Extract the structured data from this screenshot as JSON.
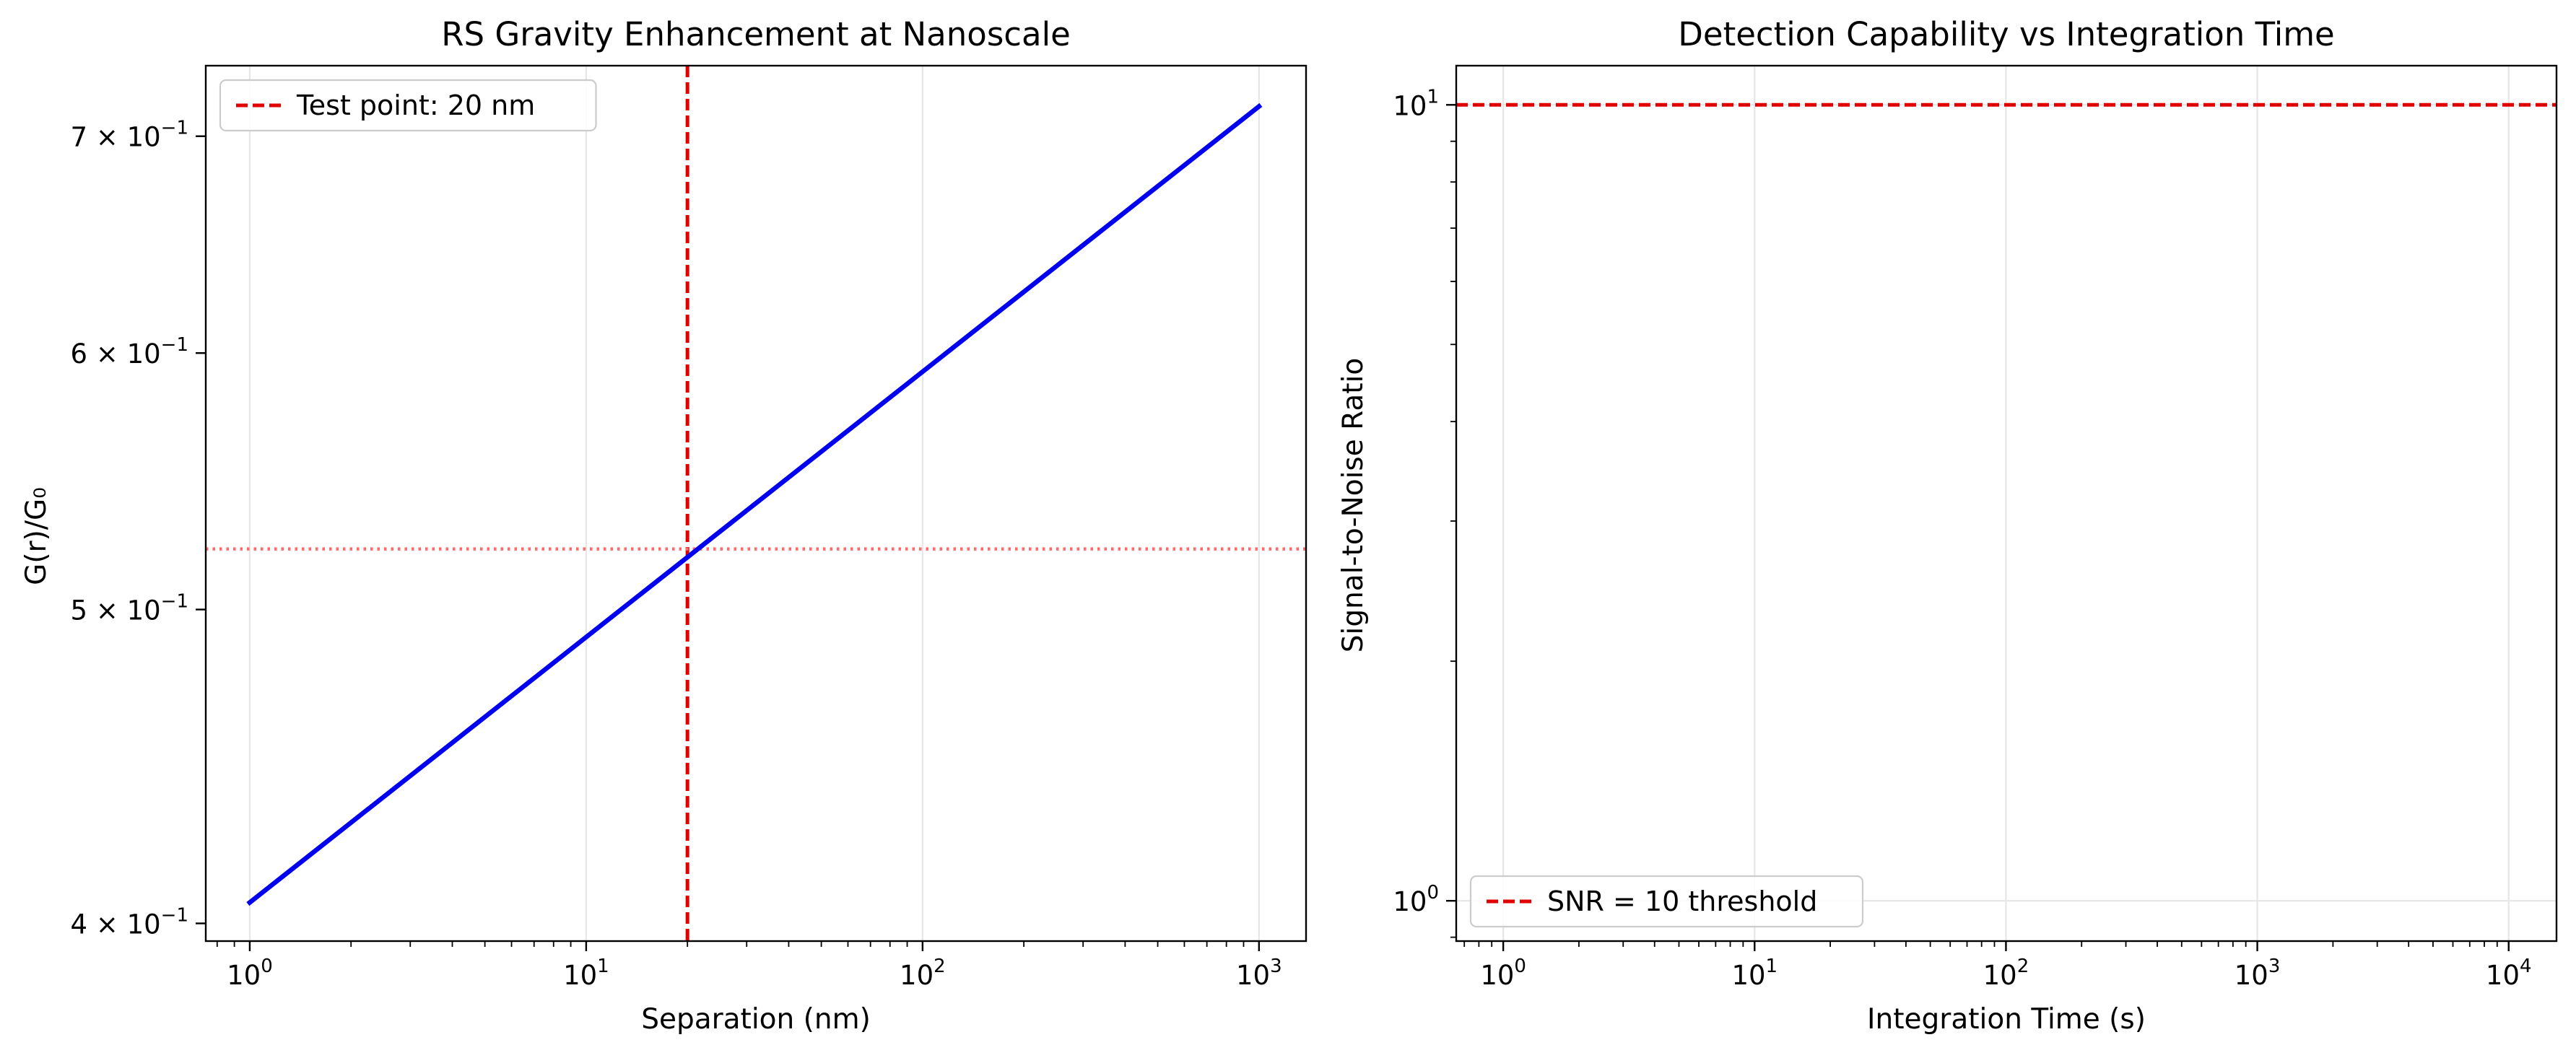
{
  "chart_data": [
    {
      "type": "line",
      "title": "RS Gravity Enhancement at Nanoscale",
      "xlabel": "Separation (nm)",
      "ylabel": "G(r)/G₀",
      "xscale": "log",
      "yscale": "log",
      "xlim": [
        0.74,
        1380
      ],
      "ylim": [
        0.395,
        0.736
      ],
      "grid": "x",
      "legend_position": "upper left",
      "x_ticks": [
        {
          "value": 1,
          "label": "10",
          "exp": "0"
        },
        {
          "value": 10,
          "label": "10",
          "exp": "1"
        },
        {
          "value": 100,
          "label": "10",
          "exp": "2"
        },
        {
          "value": 1000,
          "label": "10",
          "exp": "3"
        }
      ],
      "y_ticks": [
        {
          "value": 0.4,
          "label": "4 × 10",
          "exp": "−1"
        },
        {
          "value": 0.5,
          "label": "5 × 10",
          "exp": "−1"
        },
        {
          "value": 0.6,
          "label": "6 × 10",
          "exp": "−1"
        },
        {
          "value": 0.7,
          "label": "7 × 10",
          "exp": "−1"
        }
      ],
      "series": [
        {
          "color": "#0000ee",
          "style": "solid",
          "x": [
            1,
            1000
          ],
          "y": [
            0.406,
            0.715
          ]
        }
      ],
      "reference_lines": [
        {
          "orientation": "vertical",
          "x": 20,
          "color": "#e00000",
          "style": "dashed",
          "legend": "Test point: 20 nm"
        },
        {
          "orientation": "horizontal",
          "y": 0.522,
          "color": "#ff6b6b",
          "style": "dotted"
        }
      ]
    },
    {
      "type": "line",
      "title": "Detection Capability vs Integration Time",
      "xlabel": "Integration Time (s)",
      "ylabel": "Signal-to-Noise Ratio",
      "xscale": "log",
      "yscale": "log",
      "xlim": [
        0.65,
        15500
      ],
      "ylim": [
        0.89,
        11.2
      ],
      "grid": "both",
      "legend_position": "lower left",
      "x_ticks": [
        {
          "value": 1,
          "label": "10",
          "exp": "0"
        },
        {
          "value": 10,
          "label": "10",
          "exp": "1"
        },
        {
          "value": 100,
          "label": "10",
          "exp": "2"
        },
        {
          "value": 1000,
          "label": "10",
          "exp": "3"
        },
        {
          "value": 10000,
          "label": "10",
          "exp": "4"
        }
      ],
      "y_ticks": [
        {
          "value": 1,
          "label": "10",
          "exp": "0"
        },
        {
          "value": 10,
          "label": "10",
          "exp": "1"
        }
      ],
      "series": [],
      "reference_lines": [
        {
          "orientation": "horizontal",
          "y": 10,
          "color": "#e00000",
          "style": "dashed",
          "legend": "SNR = 10 threshold"
        }
      ]
    }
  ]
}
